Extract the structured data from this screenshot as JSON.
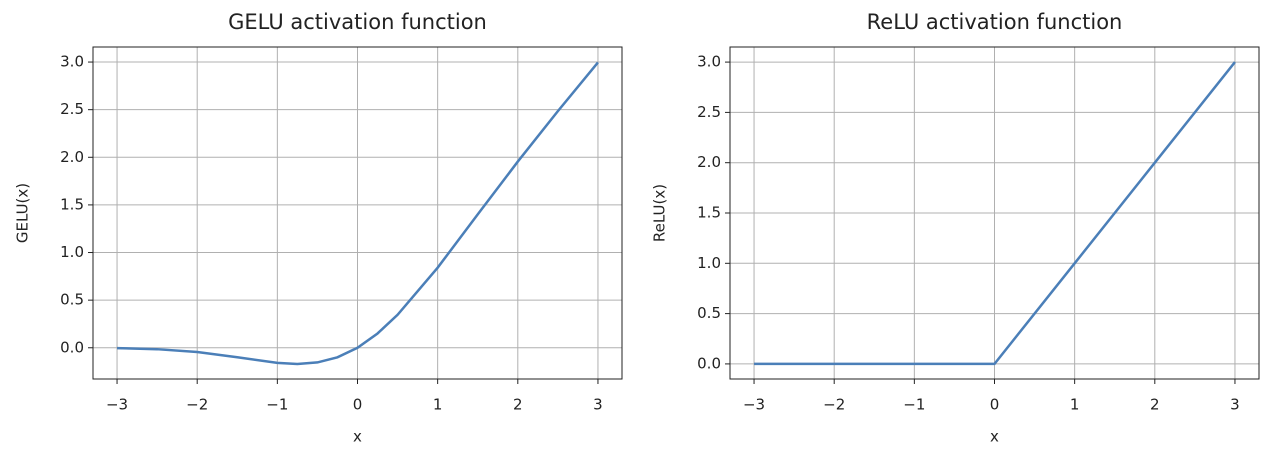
{
  "chart_data": [
    {
      "type": "line",
      "title": "GELU activation function",
      "xlabel": "x",
      "ylabel": "GELU(x)",
      "x": [
        -3,
        -2.5,
        -2,
        -1.5,
        -1,
        -0.75,
        -0.5,
        -0.25,
        0,
        0.25,
        0.5,
        1,
        1.5,
        2,
        2.5,
        3
      ],
      "values": [
        -0.004,
        -0.015,
        -0.045,
        -0.1,
        -0.159,
        -0.17,
        -0.154,
        -0.1,
        0,
        0.15,
        0.346,
        0.841,
        1.4,
        1.955,
        2.485,
        2.996
      ],
      "color": "#4b7fb8",
      "grid": true,
      "xlim": [
        -3.3,
        3.3
      ],
      "xticks": [
        {
          "value": -3,
          "label": "−3"
        },
        {
          "value": -2,
          "label": "−2"
        },
        {
          "value": -1,
          "label": "−1"
        },
        0,
        1,
        2,
        3
      ],
      "ylim": [
        -0.328,
        3.158
      ],
      "yticks": [
        {
          "value": 0,
          "label": "0.0"
        },
        {
          "value": 0.5,
          "label": "0.5"
        },
        {
          "value": 1,
          "label": "1.0"
        },
        {
          "value": 1.5,
          "label": "1.5"
        },
        {
          "value": 2,
          "label": "2.0"
        },
        {
          "value": 2.5,
          "label": "2.5"
        },
        {
          "value": 3,
          "label": "3.0"
        }
      ]
    },
    {
      "type": "line",
      "title": "ReLU activation function",
      "xlabel": "x",
      "ylabel": "ReLU(x)",
      "x": [
        -3,
        -2,
        -1,
        0,
        1,
        2,
        3
      ],
      "values": [
        0,
        0,
        0,
        0,
        1,
        2,
        3
      ],
      "color": "#4b7fb8",
      "grid": true,
      "xlim": [
        -3.3,
        3.3
      ],
      "xticks": [
        {
          "value": -3,
          "label": "−3"
        },
        {
          "value": -2,
          "label": "−2"
        },
        {
          "value": -1,
          "label": "−1"
        },
        0,
        1,
        2,
        3
      ],
      "ylim": [
        -0.15,
        3.15
      ],
      "yticks": [
        {
          "value": 0,
          "label": "0.0"
        },
        {
          "value": 0.5,
          "label": "0.5"
        },
        {
          "value": 1,
          "label": "1.0"
        },
        {
          "value": 1.5,
          "label": "1.5"
        },
        {
          "value": 2,
          "label": "2.0"
        },
        {
          "value": 2.5,
          "label": "2.5"
        },
        {
          "value": 3,
          "label": "3.0"
        }
      ]
    }
  ]
}
